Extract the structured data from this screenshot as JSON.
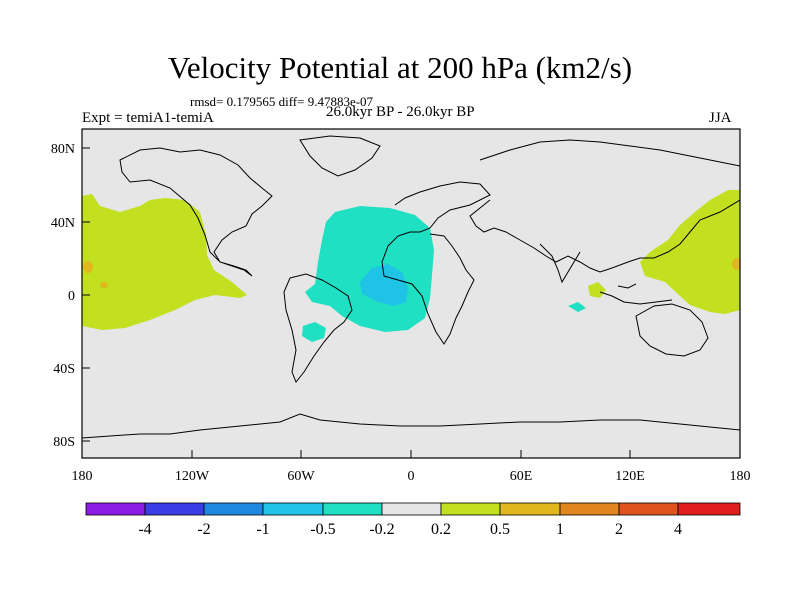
{
  "title": "Velocity Potential at 200 hPa (km2/s)",
  "stats": "rmsd= 0.179565  diff= 9.47883e-07",
  "experiment": "Expt = temiA1-temiA",
  "period": "26.0kyr BP - 26.0kyr BP",
  "season": "JJA",
  "map": {
    "background": "#e6e6e6",
    "lat_ticks": [
      "80N",
      "40N",
      "0",
      "40S",
      "80S"
    ],
    "lon_ticks": [
      "180",
      "120W",
      "60W",
      "0",
      "60E",
      "120E",
      "180"
    ]
  },
  "colorbar": {
    "colors": [
      "#8a1ce6",
      "#3a3de6",
      "#1e88e0",
      "#1ec3e6",
      "#1fe0c2",
      "#e6e6e6",
      "#c2e01f",
      "#e0b81e",
      "#e0861e",
      "#e0521e",
      "#e01e1e"
    ],
    "labels": [
      "-4",
      "-2",
      "-1",
      "-0.5",
      "-0.2",
      "0.2",
      "0.5",
      "1",
      "2",
      "4"
    ]
  }
}
